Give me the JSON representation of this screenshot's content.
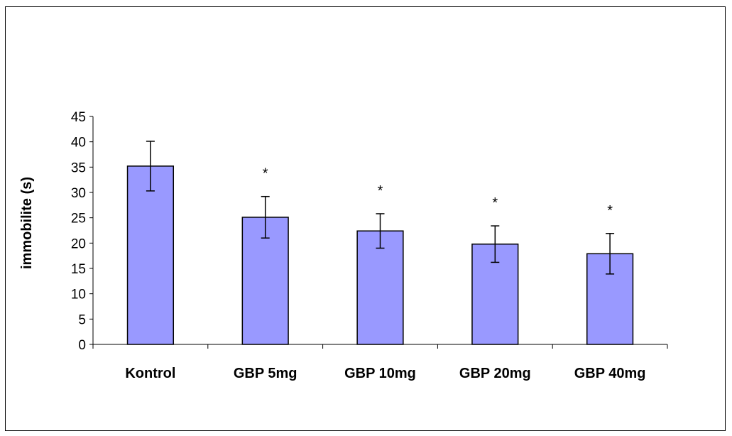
{
  "chart_data": {
    "type": "bar",
    "title": "",
    "xlabel": "",
    "ylabel": "immobilite (s)",
    "categories": [
      "Kontrol",
      "GBP 5mg",
      "GBP 10mg",
      "GBP 20mg",
      "GBP 40mg"
    ],
    "values": [
      35.2,
      25.1,
      22.4,
      19.8,
      17.9
    ],
    "error": [
      4.9,
      4.1,
      3.4,
      3.6,
      4.0
    ],
    "annotations": [
      "",
      "*",
      "*",
      "*",
      "*"
    ],
    "ylim": [
      0,
      45
    ],
    "yticks": [
      "0",
      "5",
      "10",
      "15",
      "20",
      "25",
      "30",
      "35",
      "40",
      "45"
    ],
    "grid": false,
    "legend": "none",
    "bar_color": "#9999ff",
    "bar_edge_color": "#000000"
  }
}
